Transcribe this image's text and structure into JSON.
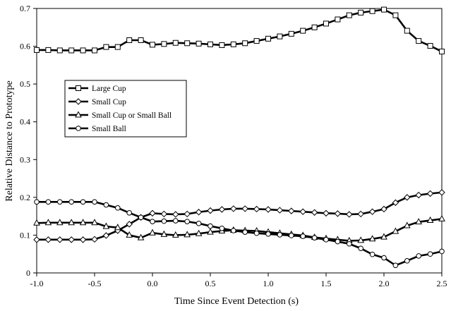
{
  "chart_data": {
    "type": "line",
    "xlabel": "Time Since Event Detection (s)",
    "ylabel": "Relative Distance to Prototype",
    "xlim": [
      -1.0,
      2.5
    ],
    "ylim": [
      0,
      0.7
    ],
    "x_ticks": [
      -1.0,
      -0.5,
      0.0,
      0.5,
      1.0,
      1.5,
      2.0,
      2.5
    ],
    "x_tick_labels": [
      "-1.0",
      "-0.5",
      "0.0",
      "0.5",
      "1.0",
      "1.5",
      "2.0",
      "2.5"
    ],
    "y_ticks": [
      0,
      0.1,
      0.2,
      0.3,
      0.4,
      0.5,
      0.6,
      0.7
    ],
    "y_tick_labels": [
      "0",
      "0.1",
      "0.2",
      "0.3",
      "0.4",
      "0.5",
      "0.6",
      "0.7"
    ],
    "grid": false,
    "legend_position": "center-left",
    "x": [
      -1.0,
      -0.9,
      -0.8,
      -0.7,
      -0.6,
      -0.5,
      -0.4,
      -0.3,
      -0.2,
      -0.1,
      0.0,
      0.1,
      0.2,
      0.3,
      0.4,
      0.5,
      0.6,
      0.7,
      0.8,
      0.9,
      1.0,
      1.1,
      1.2,
      1.3,
      1.4,
      1.5,
      1.6,
      1.7,
      1.8,
      1.9,
      2.0,
      2.1,
      2.2,
      2.3,
      2.4,
      2.5
    ],
    "series": [
      {
        "name": "Large Cup",
        "marker": "square",
        "values": [
          0.59,
          0.59,
          0.589,
          0.589,
          0.589,
          0.589,
          0.598,
          0.598,
          0.616,
          0.616,
          0.604,
          0.606,
          0.609,
          0.608,
          0.607,
          0.605,
          0.603,
          0.605,
          0.608,
          0.614,
          0.62,
          0.626,
          0.633,
          0.641,
          0.65,
          0.66,
          0.671,
          0.682,
          0.689,
          0.693,
          0.697,
          0.682,
          0.641,
          0.614,
          0.601,
          0.586
        ]
      },
      {
        "name": "Small Cup",
        "marker": "diamond",
        "values": [
          0.088,
          0.088,
          0.088,
          0.088,
          0.088,
          0.089,
          0.099,
          0.112,
          0.129,
          0.147,
          0.158,
          0.156,
          0.155,
          0.156,
          0.161,
          0.165,
          0.168,
          0.17,
          0.17,
          0.169,
          0.168,
          0.166,
          0.164,
          0.162,
          0.16,
          0.158,
          0.157,
          0.155,
          0.156,
          0.162,
          0.169,
          0.186,
          0.2,
          0.206,
          0.21,
          0.213
        ]
      },
      {
        "name": "Small Cup or Small Ball",
        "marker": "triangle",
        "values": [
          0.132,
          0.133,
          0.133,
          0.133,
          0.133,
          0.133,
          0.123,
          0.12,
          0.1,
          0.093,
          0.106,
          0.102,
          0.1,
          0.101,
          0.104,
          0.108,
          0.111,
          0.113,
          0.112,
          0.111,
          0.108,
          0.105,
          0.102,
          0.099,
          0.094,
          0.091,
          0.088,
          0.085,
          0.086,
          0.09,
          0.095,
          0.11,
          0.125,
          0.135,
          0.139,
          0.143
        ]
      },
      {
        "name": "Small Ball",
        "marker": "circle",
        "values": [
          0.188,
          0.188,
          0.188,
          0.188,
          0.188,
          0.188,
          0.18,
          0.172,
          0.159,
          0.147,
          0.136,
          0.137,
          0.138,
          0.136,
          0.131,
          0.124,
          0.118,
          0.112,
          0.108,
          0.105,
          0.103,
          0.101,
          0.099,
          0.097,
          0.093,
          0.088,
          0.083,
          0.077,
          0.065,
          0.049,
          0.04,
          0.02,
          0.032,
          0.045,
          0.05,
          0.057
        ]
      }
    ]
  }
}
